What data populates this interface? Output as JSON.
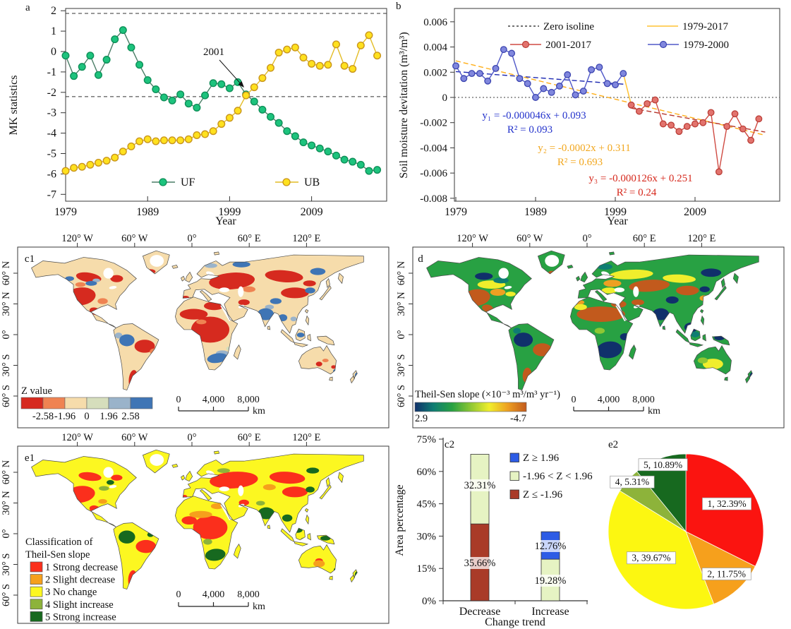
{
  "chart_data": [
    {
      "id": "a",
      "type": "line",
      "panel_label": "a",
      "xlabel": "Year",
      "ylabel": "MK statistics",
      "xlim": [
        1979,
        2018
      ],
      "ylim": [
        -7,
        2
      ],
      "x_ticks": [
        1979,
        1989,
        1999,
        2009
      ],
      "y_ticks": [
        2,
        1,
        0,
        -1,
        -2,
        -3,
        -4,
        -5,
        -6,
        -7
      ],
      "x_start": 1979,
      "dashed_hlines": [
        1.87,
        -2.21
      ],
      "annotation": {
        "text": "2001"
      },
      "series": [
        {
          "name": "UF",
          "line_color": "#4a7d66",
          "marker_fill": "#1dc37d",
          "marker_edge": "#0e8f58",
          "values": [
            -0.2,
            -1.2,
            -0.75,
            -0.2,
            -1.15,
            -0.4,
            0.6,
            1.05,
            0.2,
            -0.65,
            -1.4,
            -1.85,
            -2.25,
            -2.4,
            -2.1,
            -2.55,
            -2.75,
            -2.15,
            -1.55,
            -1.6,
            -1.8,
            -1.5,
            -2.1,
            -2.45,
            -2.85,
            -3.2,
            -3.5,
            -3.9,
            -4.15,
            -4.45,
            -4.6,
            -4.75,
            -4.9,
            -5.1,
            -5.3,
            -5.4,
            -5.55,
            -5.85,
            -5.8
          ]
        },
        {
          "name": "UB",
          "line_color": "#e3bc25",
          "marker_fill": "#ffe11e",
          "marker_edge": "#c9951c",
          "values": [
            -5.85,
            -5.7,
            -5.65,
            -5.55,
            -5.45,
            -5.35,
            -5.2,
            -4.9,
            -4.65,
            -4.4,
            -4.3,
            -4.4,
            -4.35,
            -4.35,
            -4.35,
            -4.3,
            -4.1,
            -4.05,
            -3.9,
            -3.55,
            -3.25,
            -2.9,
            -2.15,
            -1.75,
            -1.3,
            -0.8,
            -0.05,
            0.1,
            0.2,
            -0.3,
            -0.6,
            -0.7,
            -0.65,
            0.35,
            -0.7,
            -0.85,
            0.3,
            0.8,
            -0.2
          ]
        }
      ]
    },
    {
      "id": "b",
      "type": "line",
      "panel_label": "b",
      "xlabel": "Year",
      "ylabel": "Soil moisture devitation (m³/m³)",
      "xlim": [
        1979,
        2018
      ],
      "ylim": [
        -0.008,
        0.006
      ],
      "x_ticks": [
        1979,
        1989,
        1999,
        2009
      ],
      "y_ticks": [
        0.006,
        0.004,
        0.002,
        0,
        -0.002,
        -0.004,
        -0.006,
        -0.008
      ],
      "series": [
        {
          "name": "1979-2000",
          "x_start": 1979,
          "line_color": "#5058c8",
          "marker_fill": "#8087dd",
          "marker_edge": "#3c45b0",
          "values": [
            0.0025,
            0.0015,
            0.0019,
            0.0019,
            0.0013,
            0.0023,
            0.0038,
            0.0035,
            0.0015,
            0.0011,
            0.0,
            0.0007,
            0.0004,
            0.0009,
            0.0018,
            0.0002,
            0.0005,
            0.0022,
            0.0024,
            0.0011,
            0.001,
            0.0019
          ]
        },
        {
          "name": "2001-2017",
          "x_start": 2001,
          "line_color": "#cf4a42",
          "marker_fill": "#e2736d",
          "marker_edge": "#bb3f38",
          "values": [
            -0.0006,
            -0.0011,
            -0.0005,
            -0.0002,
            -0.0021,
            -0.0022,
            -0.0027,
            -0.0023,
            -0.0021,
            -0.002,
            -0.0012,
            -0.0059,
            -0.0023,
            -0.0013,
            -0.0025,
            -0.0034,
            -0.0017
          ]
        }
      ],
      "connector": {
        "color": "#ffc233",
        "from": [
          2000,
          0.0019
        ],
        "to": [
          2001,
          -0.0006
        ]
      },
      "trend_lines": [
        {
          "name": "1979-2000",
          "color": "#1e2ab2",
          "x1": 1979,
          "y1": 0.00205,
          "x2": 2000,
          "y2": 0.00105
        },
        {
          "name": "1979-2017",
          "color": "#ffae17",
          "x1": 1979,
          "y1": 0.0029,
          "x2": 2017.8,
          "y2": -0.003
        },
        {
          "name": "2001-2017",
          "color": "#b5352b",
          "x1": 2001,
          "y1": -0.00085,
          "x2": 2017.8,
          "y2": -0.00275
        }
      ],
      "equations": [
        {
          "line1": "y₁ = -0.000046x + 0.093",
          "line2": "R² = 0.093",
          "color": "#2433cc"
        },
        {
          "line1": "y₂ = -0.0002x + 0.311",
          "line2": "R² = 0.693",
          "color": "#f2a71e"
        },
        {
          "line1": "y₃ = -0.000126x + 0.251",
          "line2": "R² = 0.24",
          "color": "#d6281c"
        }
      ],
      "legend_items": [
        {
          "label": "Zero isoline",
          "style": "dashed",
          "color": "#444444"
        },
        {
          "label": "1979-2017",
          "style": "line",
          "color": "#ffc233"
        },
        {
          "label": "2001-2017",
          "style": "marker",
          "color": "#cf4a42",
          "fill": "#e2736d",
          "edge": "#bb3f38"
        },
        {
          "label": "1979-2000",
          "style": "marker",
          "color": "#5058c8",
          "fill": "#8087dd",
          "edge": "#3c45b0"
        }
      ]
    },
    {
      "id": "c1",
      "type": "map",
      "panel_label": "c1",
      "legend_title": "Z value",
      "legend_breaks": [
        "-2.58",
        "-1.96",
        "0",
        "1.96",
        "2.58"
      ],
      "legend_colors": [
        "#d62a1f",
        "#ef8352",
        "#f6dcab",
        "#d6debc",
        "#9ab3ca",
        "#3f75b5"
      ],
      "palette": {
        "base": "#f6dcab",
        "red": "#d62a1f",
        "orange": "#ef8352",
        "pale_green": "#d6debc",
        "light_blue": "#9ab3ca",
        "blue": "#3f75b5"
      },
      "lon_labels": [
        "120° W",
        "60° W",
        "0°",
        "60° E",
        "120° E"
      ],
      "lat_labels": [
        "60° N",
        "30° N",
        "0°",
        "30° S",
        "60° S"
      ],
      "scalebar": {
        "labels": [
          "0",
          "4,000",
          "8,000"
        ],
        "unit": "km"
      }
    },
    {
      "id": "d",
      "type": "map",
      "panel_label": "d",
      "legend_title": "Theil-Sen slope (×10⁻³ m³/m³ yr⁻¹)",
      "legend_min_label": "2.9",
      "legend_max_label": "-4.7",
      "gradient": [
        "#10306b",
        "#0f7d72",
        "#28a143",
        "#8ec734",
        "#f0ee2c",
        "#eda022",
        "#c25a1d"
      ],
      "palette": {
        "base": "#28a143",
        "blue": "#10306b",
        "teal": "#0f7d72",
        "green": "#28a143",
        "ygreen": "#8ec734",
        "yellow": "#f0ee2c",
        "orange": "#eda022",
        "rust": "#c25a1d"
      },
      "lon_labels": [
        "120° W",
        "60° W",
        "0°",
        "60° E",
        "120° E"
      ],
      "lat_labels": [
        "60° N",
        "30° N",
        "0°",
        "30° S",
        "60° S"
      ],
      "scalebar": {
        "labels": [
          "0",
          "4,000",
          "8,000"
        ],
        "unit": "km"
      }
    },
    {
      "id": "e1",
      "type": "map",
      "panel_label": "e1",
      "legend_title_lines": [
        "Classification of",
        "Theil-Sen slope"
      ],
      "classes": [
        {
          "label": "1 Strong decrease",
          "color": "#fb2f1c"
        },
        {
          "label": "2 Slight decrease",
          "color": "#f6a01c"
        },
        {
          "label": "3 No change",
          "color": "#fcf721"
        },
        {
          "label": "4 Slight increase",
          "color": "#8db33a"
        },
        {
          "label": "5 Strong increase",
          "color": "#17691f"
        }
      ],
      "palette": {
        "base": "#fcf721",
        "red": "#fb2f1c",
        "orange": "#f6a01c",
        "yellow": "#fcf721",
        "olive": "#8db33a",
        "green": "#17691f"
      },
      "lon_labels": [
        "120° W",
        "60° W",
        "0°",
        "60° E",
        "120° E"
      ],
      "lat_labels": [
        "60° N",
        "30° N",
        "0°",
        "30° S",
        "60° S"
      ],
      "scalebar": {
        "labels": [
          "0",
          "4,000",
          "8,000"
        ],
        "unit": "km"
      }
    },
    {
      "id": "c2",
      "type": "bar",
      "panel_label": "c2",
      "xlabel": "Change trend",
      "ylabel": "Area percentage",
      "categories": [
        "Decrease",
        "Increase"
      ],
      "ylim": [
        0,
        75
      ],
      "y_ticks": [
        "0%",
        "15%",
        "30%",
        "45%",
        "60%",
        "75%"
      ],
      "stacks": [
        {
          "category": "Decrease",
          "segments": [
            {
              "label": "35.66%",
              "value": 35.66,
              "color": "#a93b28"
            },
            {
              "label": "32.31%",
              "value": 32.31,
              "color": "#e6f3c3"
            }
          ]
        },
        {
          "category": "Increase",
          "segments": [
            {
              "label": "19.28%",
              "value": 19.28,
              "color": "#e6f3c3"
            },
            {
              "label": "12.76%",
              "value": 12.76,
              "color": "#2d5ce5"
            }
          ]
        }
      ],
      "legend": [
        {
          "label": "Z ≥ 1.96",
          "color": "#2d5ce5"
        },
        {
          "label": "-1.96 < Z < 1.96",
          "color": "#e6f3c3"
        },
        {
          "label": "Z ≤ -1.96",
          "color": "#a93b28"
        }
      ]
    },
    {
      "id": "e2",
      "type": "pie",
      "panel_label": "e2",
      "slices": [
        {
          "label": "1, 32.39%",
          "value": 32.39,
          "color": "#fb1410"
        },
        {
          "label": "2, 11.75%",
          "value": 11.75,
          "color": "#f6a01c"
        },
        {
          "label": "3, 39.67%",
          "value": 39.67,
          "color": "#fcf711"
        },
        {
          "label": "4, 5.31%",
          "value": 5.31,
          "color": "#8db33a"
        },
        {
          "label": "5, 10.89%",
          "value": 10.89,
          "color": "#17691f"
        }
      ]
    }
  ]
}
